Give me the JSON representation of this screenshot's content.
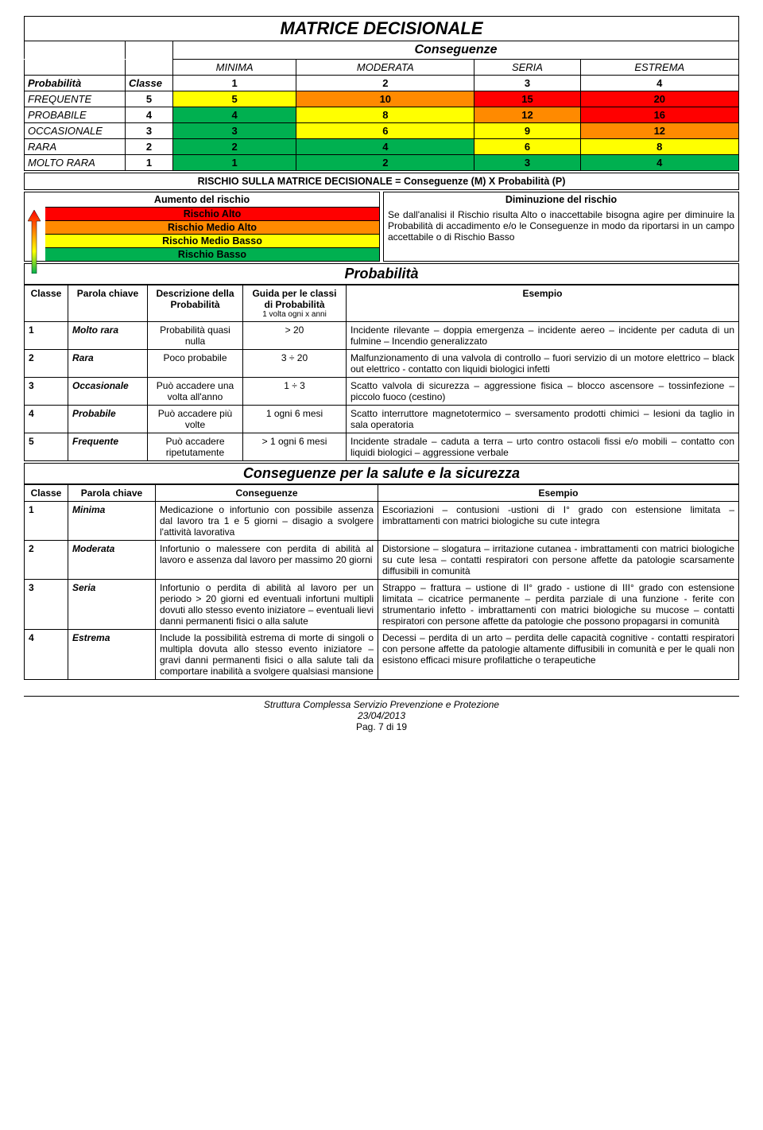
{
  "colors": {
    "red": "#ff0000",
    "orange": "#ff8a00",
    "yellow": "#ffff00",
    "green": "#00b050"
  },
  "main_title": "MATRICE DECISIONALE",
  "conseq_label": "Conseguenze",
  "matrix": {
    "col_headers": [
      "MINIMA",
      "MODERATA",
      "SERIA",
      "ESTREMA"
    ],
    "prob_label": "Probabilità",
    "class_label": "Classe",
    "class_nums": [
      "1",
      "2",
      "3",
      "4"
    ],
    "rows": [
      {
        "label": "FREQUENTE",
        "cls": "5",
        "cells": [
          {
            "v": "5",
            "c": "#ffff00"
          },
          {
            "v": "10",
            "c": "#ff8a00"
          },
          {
            "v": "15",
            "c": "#ff0000"
          },
          {
            "v": "20",
            "c": "#ff0000"
          }
        ]
      },
      {
        "label": "PROBABILE",
        "cls": "4",
        "cells": [
          {
            "v": "4",
            "c": "#00b050"
          },
          {
            "v": "8",
            "c": "#ffff00"
          },
          {
            "v": "12",
            "c": "#ff8a00"
          },
          {
            "v": "16",
            "c": "#ff0000"
          }
        ]
      },
      {
        "label": "OCCASIONALE",
        "cls": "3",
        "cells": [
          {
            "v": "3",
            "c": "#00b050"
          },
          {
            "v": "6",
            "c": "#ffff00"
          },
          {
            "v": "9",
            "c": "#ffff00"
          },
          {
            "v": "12",
            "c": "#ff8a00"
          }
        ]
      },
      {
        "label": "RARA",
        "cls": "2",
        "cells": [
          {
            "v": "2",
            "c": "#00b050"
          },
          {
            "v": "4",
            "c": "#00b050"
          },
          {
            "v": "6",
            "c": "#ffff00"
          },
          {
            "v": "8",
            "c": "#ffff00"
          }
        ]
      },
      {
        "label": "MOLTO RARA",
        "cls": "1",
        "cells": [
          {
            "v": "1",
            "c": "#00b050"
          },
          {
            "v": "2",
            "c": "#00b050"
          },
          {
            "v": "3",
            "c": "#00b050"
          },
          {
            "v": "4",
            "c": "#00b050"
          }
        ]
      }
    ]
  },
  "formula": "RISCHIO SULLA MATRICE DECISIONALE = Conseguenze (M) X Probabilità (P)",
  "left_box": {
    "title": "Aumento del rischio",
    "levels": [
      {
        "label": "Rischio Alto",
        "color": "#ff0000"
      },
      {
        "label": "Rischio Medio Alto",
        "color": "#ff8a00"
      },
      {
        "label": "Rischio Medio Basso",
        "color": "#ffff00"
      },
      {
        "label": "Rischio Basso",
        "color": "#00b050"
      }
    ]
  },
  "right_box": {
    "title": "Diminuzione del rischio",
    "text": "Se dall'analisi il Rischio risulta Alto o inaccettabile bisogna agire per diminuire la Probabilità di accadimento e/o le Conseguenze in modo da riportarsi in un campo accettabile o di Rischio Basso"
  },
  "prob_section": {
    "title": "Probabilità",
    "headers": [
      "Classe",
      "Parola chiave",
      "Descrizione della Probabilità",
      "Guida per le classi di Probabilità",
      "Esempio"
    ],
    "sub_note": "1 volta ogni x anni",
    "rows": [
      {
        "c": "1",
        "k": "Molto rara",
        "d": "Probabilità quasi nulla",
        "g": "> 20",
        "e": "Incidente rilevante – doppia emergenza – incidente aereo – incidente per caduta di un fulmine – Incendio generalizzato"
      },
      {
        "c": "2",
        "k": "Rara",
        "d": "Poco probabile",
        "g": "3 ÷ 20",
        "e": "Malfunzionamento di una valvola di controllo – fuori servizio di un motore elettrico – black out elettrico - contatto con liquidi biologici infetti"
      },
      {
        "c": "3",
        "k": "Occasionale",
        "d": "Può accadere una volta all'anno",
        "g": "1 ÷ 3",
        "e": "Scatto valvola di sicurezza – aggressione fisica – blocco ascensore – tossinfezione – piccolo fuoco (cestino)"
      },
      {
        "c": "4",
        "k": "Probabile",
        "d": "Può accadere più volte",
        "g": "1 ogni 6 mesi",
        "e": "Scatto interruttore magnetotermico – sversamento prodotti chimici – lesioni da taglio in sala operatoria"
      },
      {
        "c": "5",
        "k": "Frequente",
        "d": "Può accadere ripetutamente",
        "g": "> 1 ogni 6 mesi",
        "e": "Incidente stradale – caduta a terra – urto contro ostacoli fissi e/o mobili – contatto con liquidi biologici – aggressione verbale"
      }
    ]
  },
  "cons_section": {
    "title": "Conseguenze per la salute e la sicurezza",
    "headers": [
      "Classe",
      "Parola chiave",
      "Conseguenze",
      "Esempio"
    ],
    "rows": [
      {
        "c": "1",
        "k": "Minima",
        "d": "Medicazione o infortunio con possibile assenza dal lavoro tra 1 e 5 giorni – disagio a svolgere l'attività lavorativa",
        "e": "Escoriazioni – contusioni -ustioni di I° grado con estensione limitata – imbrattamenti con matrici biologiche su cute integra"
      },
      {
        "c": "2",
        "k": "Moderata",
        "d": "Infortunio o malessere con perdita di abilità al lavoro e assenza dal lavoro per massimo 20 giorni",
        "e": "Distorsione – slogatura – irritazione cutanea - imbrattamenti con matrici biologiche su cute lesa – contatti respiratori con persone affette da patologie scarsamente diffusibili in comunità"
      },
      {
        "c": "3",
        "k": "Seria",
        "d": "Infortunio o perdita di abilità al lavoro per un periodo > 20 giorni ed eventuali infortuni multipli dovuti allo stesso evento iniziatore – eventuali lievi danni permanenti fisici o alla salute",
        "e": "Strappo – frattura – ustione di II° grado - ustione di III° grado con estensione limitata – cicatrice permanente – perdita parziale di una funzione - ferite con strumentario infetto - imbrattamenti con matrici biologiche su mucose – contatti respiratori con persone affette da patologie che possono propagarsi in comunità"
      },
      {
        "c": "4",
        "k": "Estrema",
        "d": "Include la possibilità estrema di morte di singoli o multipla dovuta allo stesso evento iniziatore – gravi danni permanenti fisici o alla salute tali da comportare inabilità a svolgere qualsiasi mansione",
        "e": "Decessi – perdita di un arto – perdita delle capacità cognitive - contatti respiratori con persone affette da patologie altamente diffusibili in comunità e per le quali non esistono efficaci misure profilattiche o terapeutiche"
      }
    ]
  },
  "footer": {
    "line1": "Struttura Complessa Servizio Prevenzione e Protezione",
    "line2": "23/04/2013",
    "line3": "Pag. 7 di 19"
  }
}
